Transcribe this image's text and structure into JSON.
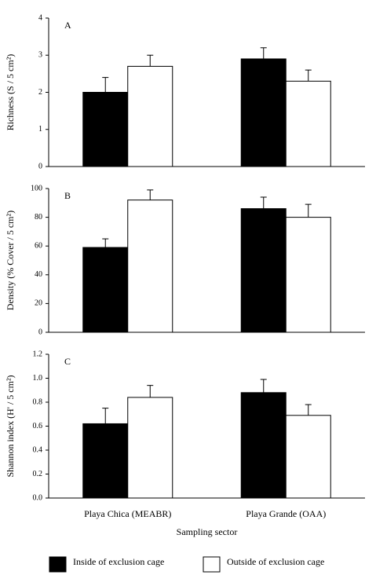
{
  "chart_data": [
    {
      "type": "bar",
      "panel": "A",
      "ylabel": "Richness (S / 5 cm²)",
      "ylim": [
        0,
        4
      ],
      "yticks": [
        0,
        1,
        2,
        3,
        4
      ],
      "series": [
        {
          "color": "#000000",
          "values": [
            2.0,
            2.9
          ],
          "errors": [
            0.4,
            0.3
          ]
        },
        {
          "color": "#ffffff",
          "values": [
            2.7,
            2.3
          ],
          "errors": [
            0.3,
            0.3
          ]
        }
      ]
    },
    {
      "type": "bar",
      "panel": "B",
      "ylabel": "Density (% Cover / 5 cm²)",
      "ylim": [
        0,
        100
      ],
      "yticks": [
        0,
        20,
        40,
        60,
        80,
        100
      ],
      "series": [
        {
          "color": "#000000",
          "values": [
            59,
            86
          ],
          "errors": [
            6,
            8
          ]
        },
        {
          "color": "#ffffff",
          "values": [
            92,
            80
          ],
          "errors": [
            7,
            9
          ]
        }
      ]
    },
    {
      "type": "bar",
      "panel": "C",
      "ylabel": "Shannon index (H' / 5 cm²)",
      "ylim": [
        0,
        1.2
      ],
      "yticks": [
        {
          "value": 0,
          "label": "0.0"
        },
        {
          "value": 0.2,
          "label": "0.2"
        },
        {
          "value": 0.4,
          "label": "0.4"
        },
        {
          "value": 0.6,
          "label": "0.6"
        },
        {
          "value": 0.8,
          "label": "0.8"
        },
        {
          "value": 1,
          "label": "1.0"
        },
        {
          "value": 1.2,
          "label": "1.2"
        }
      ],
      "categories": [
        "Playa Chica (MEABR)",
        "Playa Grande (OAA)"
      ],
      "xlabel": "Sampling sector",
      "series": [
        {
          "name": "Inside of exclusion cage",
          "color": "#000000",
          "values": [
            0.62,
            0.88
          ],
          "errors": [
            0.13,
            0.11
          ]
        },
        {
          "name": "Outside of exclusion cage",
          "color": "#ffffff",
          "values": [
            0.84,
            0.69
          ],
          "errors": [
            0.1,
            0.09
          ]
        }
      ]
    }
  ]
}
